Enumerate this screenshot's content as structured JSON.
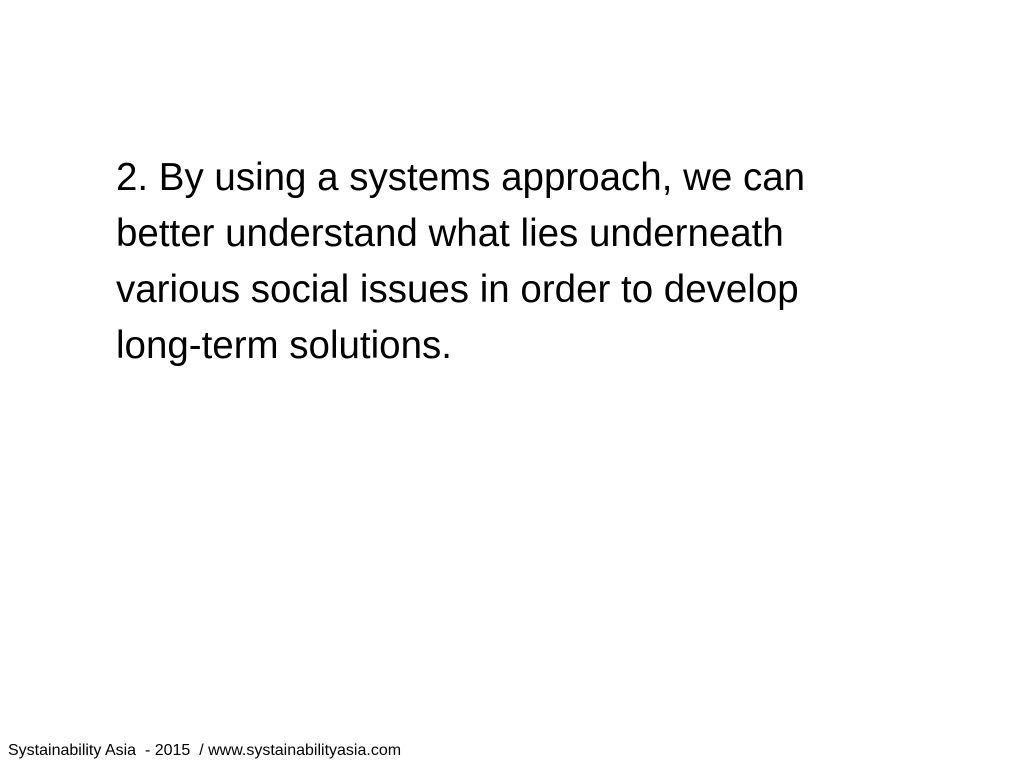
{
  "slide": {
    "body_lines": [
      "2. By using a systems approach, we can",
      "better understand what lies underneath",
      "various social issues in order to develop",
      "long-term solutions."
    ],
    "footer": "Systainability Asia  - 2015  / www.systainabilityasia.com"
  },
  "colors": {
    "background": "#ffffff",
    "text": "#000000"
  }
}
